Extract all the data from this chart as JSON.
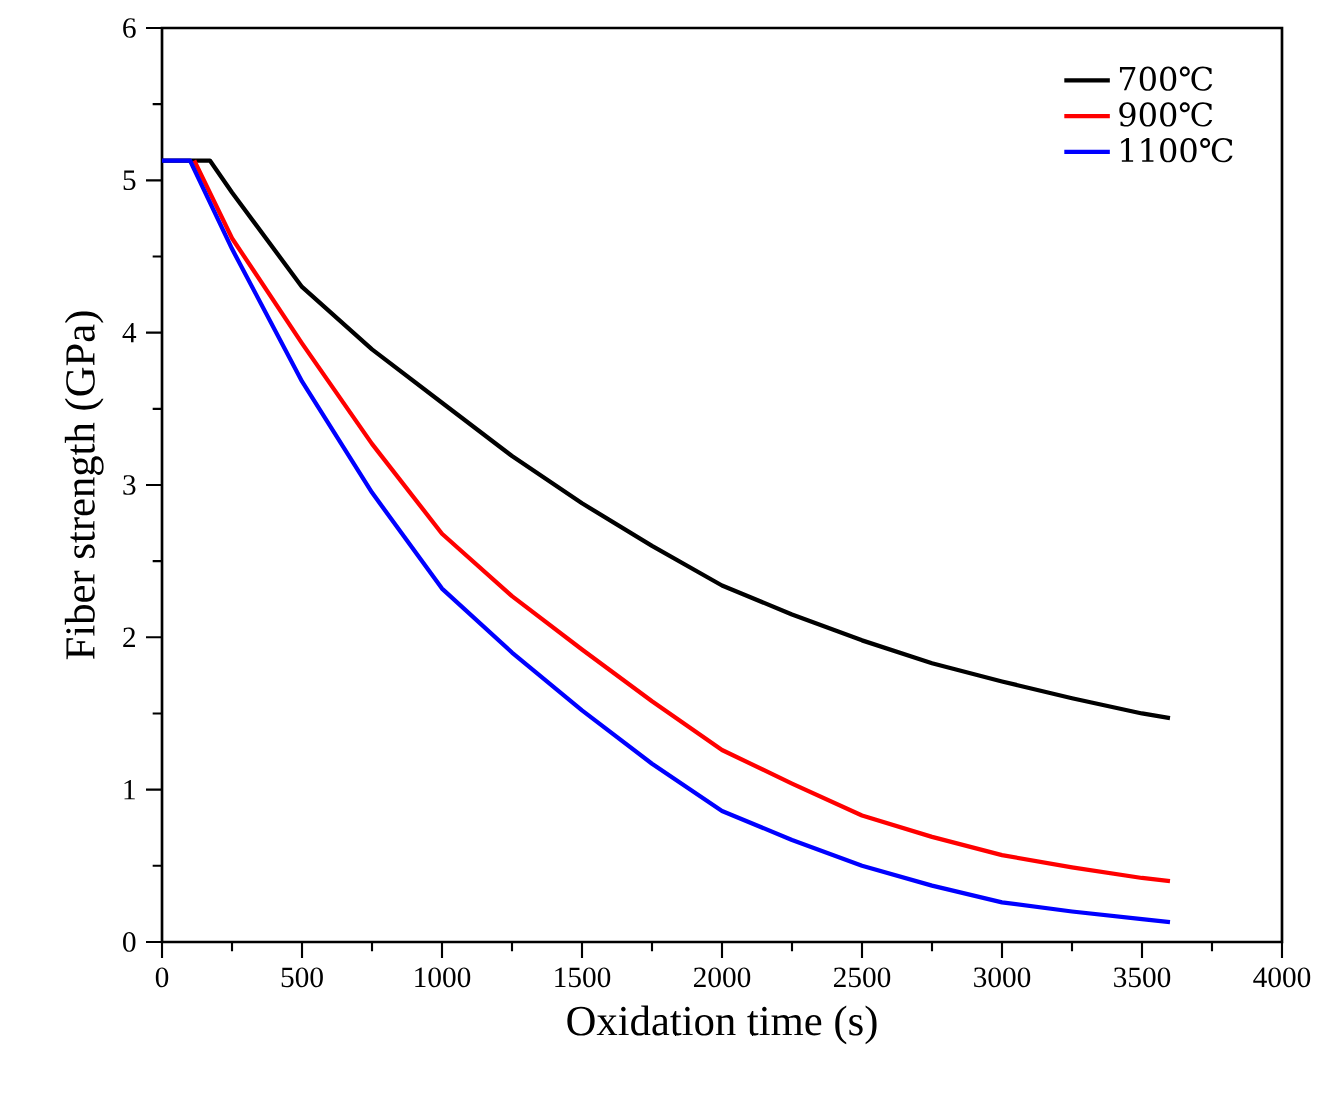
{
  "chart_data": {
    "type": "line",
    "xlabel": "Oxidation time (s)",
    "ylabel": "Fiber strength (GPa)",
    "xlim": [
      0,
      4000
    ],
    "ylim": [
      0,
      6
    ],
    "xticks": [
      0,
      500,
      1000,
      1500,
      2000,
      2500,
      3000,
      3500,
      4000
    ],
    "yticks": [
      0,
      1,
      2,
      3,
      4,
      5,
      6
    ],
    "grid": false,
    "legend": "top right",
    "marker": "none",
    "line_style": "solid",
    "series": [
      {
        "name": "700℃",
        "color": "#000000",
        "x": [
          0,
          171,
          250,
          500,
          750,
          1000,
          1250,
          1500,
          1750,
          2000,
          2250,
          2500,
          2750,
          3000,
          3250,
          3500,
          3600
        ],
        "values": [
          5.13,
          5.13,
          4.92,
          4.3,
          3.89,
          3.54,
          3.19,
          2.88,
          2.6,
          2.34,
          2.15,
          1.98,
          1.83,
          1.71,
          1.6,
          1.5,
          1.47
        ]
      },
      {
        "name": "900℃",
        "color": "#ff0000",
        "x": [
          115,
          250,
          500,
          750,
          1000,
          1250,
          1500,
          1750,
          2000,
          2250,
          2500,
          2750,
          3000,
          3250,
          3500,
          3600
        ],
        "values": [
          5.13,
          4.62,
          3.93,
          3.27,
          2.68,
          2.27,
          1.92,
          1.58,
          1.26,
          1.04,
          0.83,
          0.69,
          0.57,
          0.49,
          0.42,
          0.4
        ]
      },
      {
        "name": "1100℃",
        "color": "#0000ff",
        "x": [
          0,
          100,
          250,
          500,
          750,
          1000,
          1250,
          1500,
          1750,
          2000,
          2250,
          2500,
          2750,
          3000,
          3250,
          3500,
          3600
        ],
        "values": [
          5.13,
          5.13,
          4.55,
          3.68,
          2.95,
          2.32,
          1.9,
          1.52,
          1.17,
          0.86,
          0.67,
          0.5,
          0.37,
          0.26,
          0.2,
          0.15,
          0.13
        ]
      }
    ]
  }
}
